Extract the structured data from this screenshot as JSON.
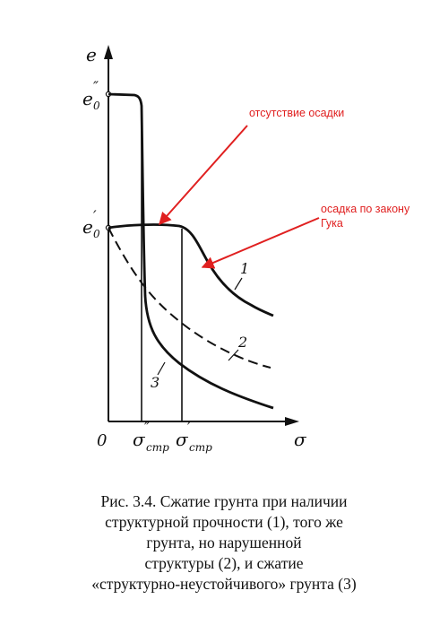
{
  "axes": {
    "y_label": "e",
    "x_label": "σ",
    "origin_label": "0",
    "y_ticks": [
      {
        "base": "e",
        "sup": "″",
        "sub": "0"
      },
      {
        "base": "e",
        "sup": "′",
        "sub": "0"
      }
    ],
    "x_ticks": [
      {
        "base": "σ",
        "sup": "″",
        "sub": "стр"
      },
      {
        "base": "σ",
        "sup": "′",
        "sub": "стр"
      }
    ]
  },
  "curves": [
    {
      "label": "1"
    },
    {
      "label": "2"
    },
    {
      "label": "3"
    }
  ],
  "annotations": [
    {
      "lines": [
        "отсутствие осадки"
      ]
    },
    {
      "lines": [
        "осадка по закону",
        "Гука"
      ]
    }
  ],
  "caption": {
    "lines": [
      "Рис. 3.4. Сжатие грунта при наличии",
      "структурной прочности (1), того же",
      "грунта, но нарушенной",
      "структуры (2), и сжатие",
      "«структурно-неустойчивого» грунта (3)"
    ]
  },
  "colors": {
    "ink": "#111111",
    "annotation": "#e02020"
  }
}
